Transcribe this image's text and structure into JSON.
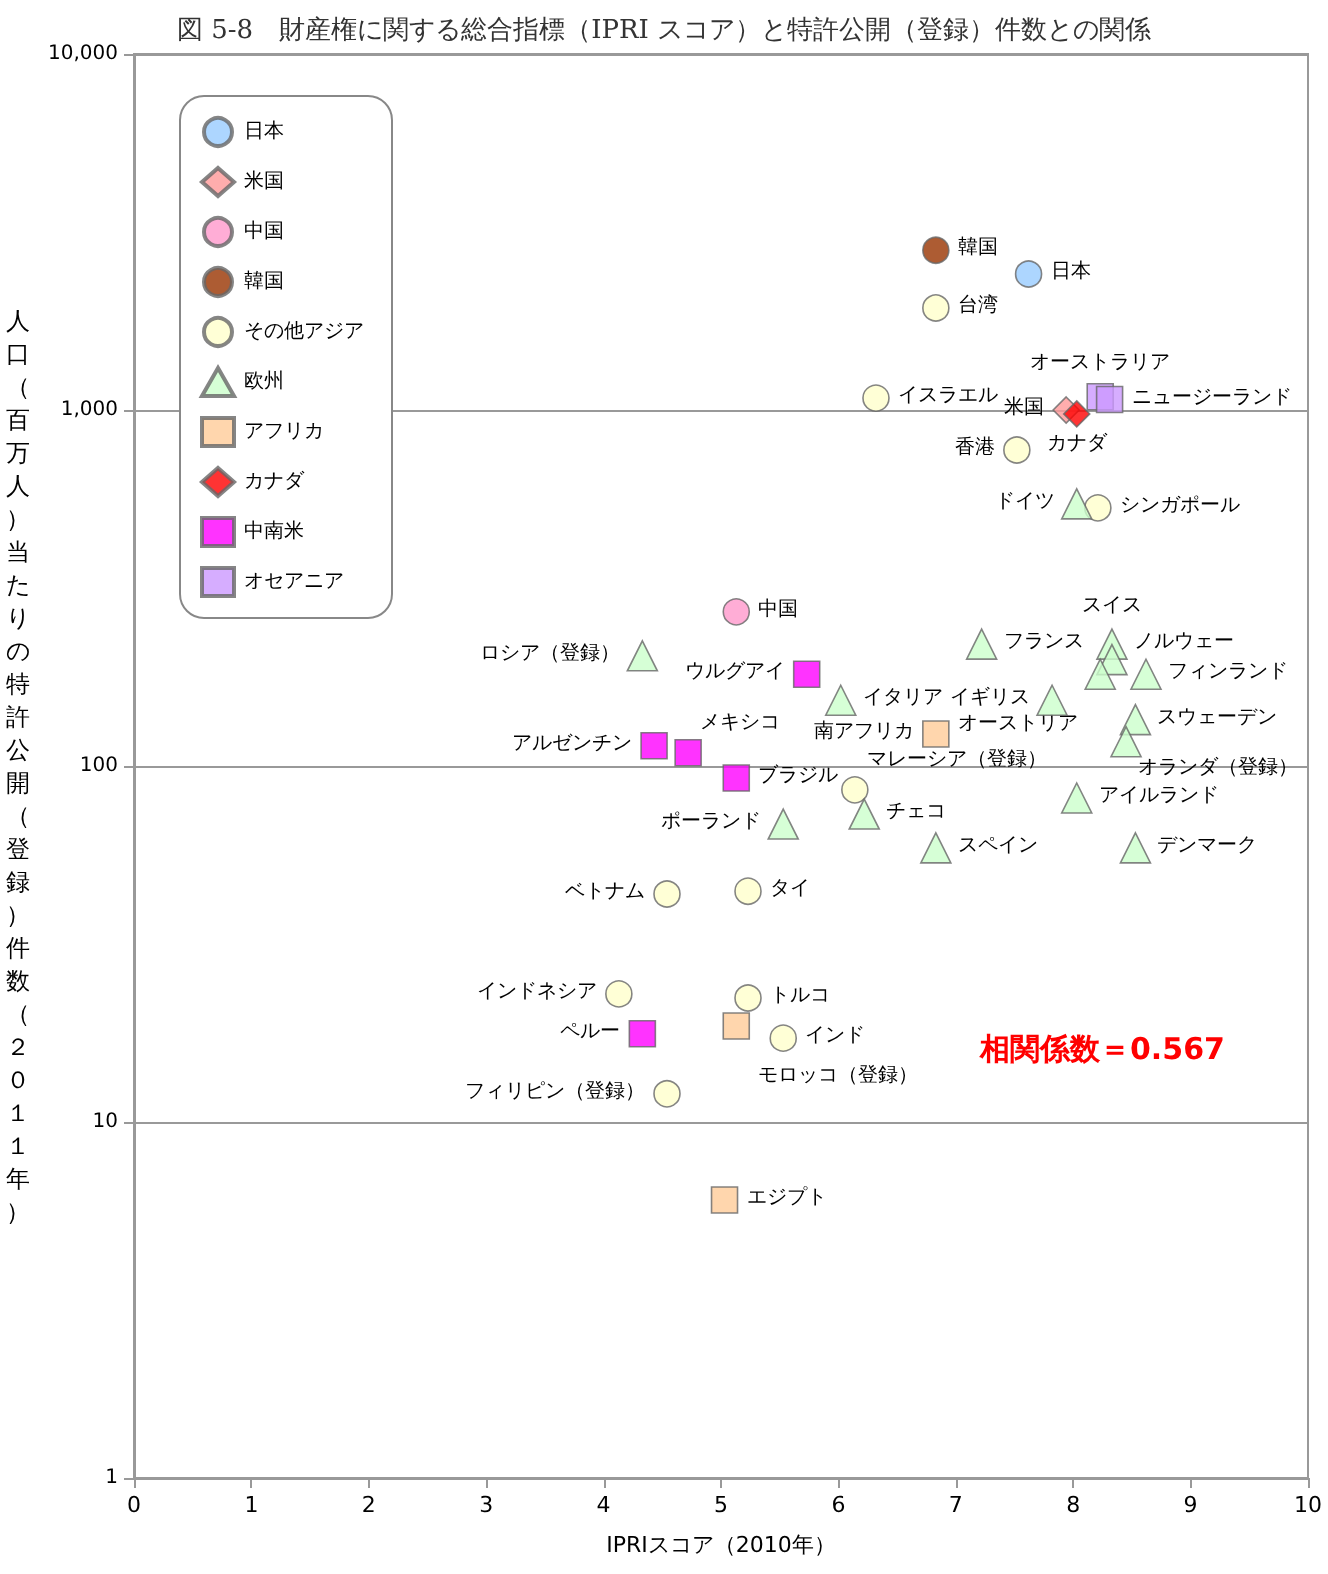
{
  "chart_data": {
    "type": "scatter",
    "title": "図 5-8　財産権に関する総合指標（IPRI スコア）と特許公開（登録）件数との関係",
    "xlabel": "IPRIスコア（2010年）",
    "ylabel": "人口（百万人）当たりの特許公開（登録）件数（２０１１年）",
    "log": "y",
    "grid": "y",
    "legend": "top left",
    "xlim": [
      0,
      10
    ],
    "xticks": [
      0,
      1,
      2,
      3,
      4,
      5,
      6,
      7,
      8,
      9,
      10
    ],
    "ylim": [
      1,
      10000
    ],
    "yticks": [
      1,
      10,
      100,
      {
        "value": 1000,
        "label": "1,000"
      },
      {
        "value": 10000,
        "label": "10,000"
      }
    ],
    "series": [
      {
        "name": "日本",
        "color": "#99ccff",
        "marker": "circle",
        "x": [
          7.62
        ],
        "values": [
          2410
        ]
      },
      {
        "name": "米国",
        "color": "#ff9999",
        "marker": "diamond",
        "x": [
          7.94
        ],
        "values": [
          1000
        ]
      },
      {
        "name": "中国",
        "color": "#ff99cc",
        "marker": "circle",
        "x": [
          5.13
        ],
        "values": [
          271
        ]
      },
      {
        "name": "韓国",
        "color": "#993300",
        "marker": "circle",
        "x": [
          6.83
        ],
        "values": [
          2810
        ]
      },
      {
        "name": "その他アジア",
        "color": "#ffffcc",
        "marker": "circle",
        "x": [
          6.83,
          6.32,
          7.52,
          8.21,
          6.14,
          4.54,
          5.23,
          4.13,
          5.23,
          5.53,
          4.54
        ],
        "values": [
          1935,
          1080,
          772,
          531,
          85.7,
          43.7,
          44.5,
          22.9,
          22.3,
          17.2,
          12.0
        ]
      },
      {
        "name": "欧州",
        "color": "#ccffcc",
        "marker": "triangle",
        "x": [
          8.03,
          4.33,
          7.22,
          8.33,
          8.33,
          8.23,
          8.62,
          6.02,
          7.82,
          8.53,
          8.45,
          8.03,
          6.22,
          5.53,
          6.83,
          8.53
        ],
        "values": [
          545,
          204,
          220,
          220,
          199,
          181,
          181,
          153,
          153,
          135,
          117,
          81.3,
          73.3,
          68.7,
          58.9,
          58.9
        ]
      },
      {
        "name": "アフリカ",
        "color": "#ffcc99",
        "marker": "square",
        "x": [
          6.83,
          5.13,
          5.03
        ],
        "values": [
          123,
          18.6,
          6.04
        ]
      },
      {
        "name": "カナダ",
        "color": "#ff0000",
        "marker": "diamond",
        "x": [
          8.03
        ],
        "values": [
          975
        ]
      },
      {
        "name": "中南米",
        "color": "#ff00ff",
        "marker": "square",
        "x": [
          5.73,
          4.43,
          4.72,
          5.13,
          4.33
        ],
        "values": [
          181,
          114,
          109,
          92.5,
          17.7
        ]
      },
      {
        "name": "オセアニア",
        "color": "#cc99ff",
        "marker": "square",
        "x": [
          8.23,
          8.31
        ],
        "values": [
          1090,
          1070
        ]
      }
    ],
    "annotations": [
      {
        "text": "日本",
        "x": 7.62,
        "y": 2410
      },
      {
        "text": "韓国",
        "x": 6.83,
        "y": 2810
      },
      {
        "text": "台湾",
        "x": 6.83,
        "y": 1935
      },
      {
        "text": "イスラエル",
        "x": 6.32,
        "y": 1080
      },
      {
        "text": "オーストラリア",
        "x": 8.23,
        "y": 1090
      },
      {
        "text": "ニュージーランド",
        "x": 8.31,
        "y": 1070
      },
      {
        "text": "米国",
        "x": 7.94,
        "y": 1000
      },
      {
        "text": "カナダ",
        "x": 8.03,
        "y": 975
      },
      {
        "text": "香港",
        "x": 7.52,
        "y": 772
      },
      {
        "text": "ドイツ",
        "x": 8.03,
        "y": 545
      },
      {
        "text": "シンガポール",
        "x": 8.21,
        "y": 531
      },
      {
        "text": "中国",
        "x": 5.13,
        "y": 271
      },
      {
        "text": "ロシア（登録）",
        "x": 4.33,
        "y": 204
      },
      {
        "text": "ノルウェー",
        "x": 8.33,
        "y": 220
      },
      {
        "text": "フランス",
        "x": 7.22,
        "y": 220
      },
      {
        "text": "スイス",
        "x": 8.33,
        "y": 199
      },
      {
        "text": "フィンランド",
        "x": 8.62,
        "y": 181
      },
      {
        "text": "オーストリア",
        "x": 8.23,
        "y": 181
      },
      {
        "text": "ウルグアイ",
        "x": 5.73,
        "y": 181
      },
      {
        "text": "イタリア",
        "x": 6.02,
        "y": 153
      },
      {
        "text": "イギリス",
        "x": 7.82,
        "y": 153
      },
      {
        "text": "スウェーデン",
        "x": 8.53,
        "y": 135
      },
      {
        "text": "オランダ（登録）",
        "x": 8.45,
        "y": 117
      },
      {
        "text": "南アフリカ",
        "x": 6.83,
        "y": 123
      },
      {
        "text": "アルゼンチン",
        "x": 4.43,
        "y": 114
      },
      {
        "text": "メキシコ",
        "x": 4.72,
        "y": 109
      },
      {
        "text": "ブラジル",
        "x": 5.13,
        "y": 92.5
      },
      {
        "text": "マレーシア（登録）",
        "x": 6.14,
        "y": 85.7
      },
      {
        "text": "アイルランド",
        "x": 8.03,
        "y": 81.3
      },
      {
        "text": "チェコ",
        "x": 6.22,
        "y": 73.3
      },
      {
        "text": "ポーランド",
        "x": 5.53,
        "y": 68.7
      },
      {
        "text": "スペイン",
        "x": 6.83,
        "y": 58.9
      },
      {
        "text": "デンマーク",
        "x": 8.53,
        "y": 58.9
      },
      {
        "text": "ベトナム",
        "x": 4.54,
        "y": 43.7
      },
      {
        "text": "タイ",
        "x": 5.23,
        "y": 44.5
      },
      {
        "text": "インドネシア",
        "x": 4.13,
        "y": 22.9
      },
      {
        "text": "トルコ",
        "x": 5.23,
        "y": 22.3
      },
      {
        "text": "ペルー",
        "x": 4.33,
        "y": 17.7
      },
      {
        "text": "モロッコ（登録）",
        "x": 5.13,
        "y": 18.6
      },
      {
        "text": "インド",
        "x": 5.53,
        "y": 17.2
      },
      {
        "text": "フィリピン（登録）",
        "x": 4.54,
        "y": 12.0
      },
      {
        "text": "エジプト",
        "x": 5.03,
        "y": 6.04
      },
      "相関係数＝0.567"
    ]
  }
}
